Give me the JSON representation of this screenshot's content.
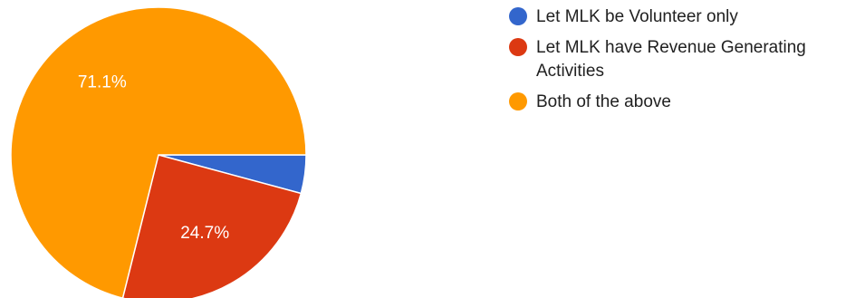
{
  "chart_data": {
    "type": "pie",
    "title": "",
    "legend_position": "right",
    "start": "3 o'clock, clockwise",
    "slices": [
      {
        "label": "Let MLK be Volunteer only",
        "value": 4.2,
        "display": "",
        "color": "#3366cc"
      },
      {
        "label": "Let MLK have Revenue Generating Activities",
        "value": 24.7,
        "display": "24.7%",
        "color": "#dc3912"
      },
      {
        "label": "Both of the above",
        "value": 71.1,
        "display": "71.1%",
        "color": "#ff9900"
      }
    ]
  }
}
